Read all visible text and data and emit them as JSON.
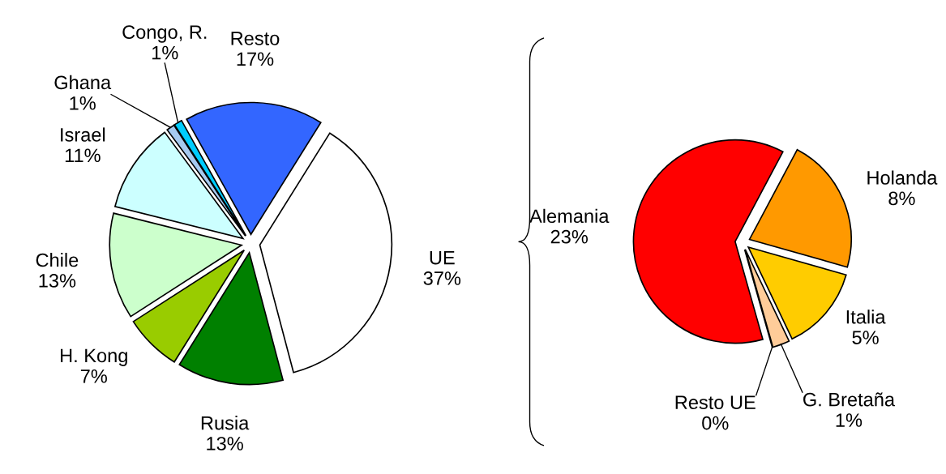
{
  "chart_data": [
    {
      "type": "pie",
      "categories": [
        "UE",
        "Rusia",
        "H. Kong",
        "Chile",
        "Israel",
        "Ghana",
        "Congo, R.",
        "Resto"
      ],
      "values": [
        37,
        13,
        7,
        13,
        11,
        1,
        1,
        17
      ],
      "colors": [
        "#ffffff",
        "#008000",
        "#99cc00",
        "#ccffcc",
        "#ccffff",
        "#a6caf0",
        "#00ccff",
        "#3366ff"
      ],
      "value_labels": [
        "37%",
        "13%",
        "7%",
        "13%",
        "11%",
        "1%",
        "1%",
        "17%"
      ]
    },
    {
      "type": "pie",
      "categories": [
        "Holanda",
        "Italia",
        "G. Bretaña",
        "Resto UE",
        "Alemania"
      ],
      "values": [
        8,
        5,
        1,
        0,
        23
      ],
      "colors": [
        "#ff9900",
        "#ffcc00",
        "#ffcc99",
        "#996633",
        "#ff0000"
      ],
      "value_labels": [
        "8%",
        "5%",
        "1%",
        "0%",
        "23%"
      ]
    }
  ]
}
